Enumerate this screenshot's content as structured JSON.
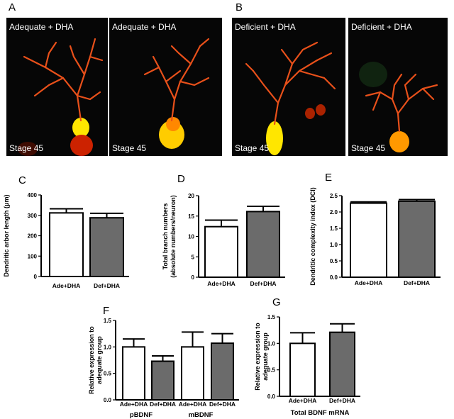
{
  "panels": {
    "A": "A",
    "B": "B",
    "C": "C",
    "D": "D",
    "E": "E",
    "F": "F",
    "G": "G"
  },
  "images": [
    {
      "top": "Adequate + DHA",
      "bottom": "Stage 45"
    },
    {
      "top": "Adequate + DHA",
      "bottom": "Stage 45"
    },
    {
      "top": "Deficient + DHA",
      "bottom": "Stage 45"
    },
    {
      "top": "Deficient + DHA",
      "bottom": "Stage 45"
    }
  ],
  "chart_data": [
    {
      "id": "C",
      "type": "bar",
      "categories": [
        "Ade+DHA",
        "Def+DHA"
      ],
      "values": [
        312,
        288
      ],
      "errors": [
        20,
        22
      ],
      "colors": [
        "#ffffff",
        "#6b6b6b"
      ],
      "ylabel": "Dendritic arbor length (μm)",
      "ylim": [
        0,
        400
      ],
      "yticks": [
        "0",
        "100",
        "200",
        "300",
        "400"
      ]
    },
    {
      "id": "D",
      "type": "bar",
      "categories": [
        "Ade+DHA",
        "Def+DHA"
      ],
      "values": [
        12.4,
        16.1
      ],
      "errors": [
        1.6,
        1.3
      ],
      "colors": [
        "#ffffff",
        "#6b6b6b"
      ],
      "ylabel": "Total branch numbers (absolute numbers/neuron)",
      "ylim": [
        0,
        20
      ],
      "yticks": [
        "0",
        "5",
        "10",
        "15",
        "20"
      ]
    },
    {
      "id": "E",
      "type": "bar",
      "categories": [
        "Ade+DHA",
        "Def+DHA"
      ],
      "values": [
        2.27,
        2.33
      ],
      "errors": [
        0.04,
        0.05
      ],
      "colors": [
        "#ffffff",
        "#6b6b6b"
      ],
      "ylabel": "Dendritic complexity index (DCI)",
      "ylim": [
        0,
        2.5
      ],
      "yticks": [
        "0.0",
        "0.5",
        "1.0",
        "1.5",
        "2.0",
        "2.5"
      ]
    },
    {
      "id": "F",
      "type": "bar",
      "categories": [
        "Ade+DHA",
        "Def+DHA",
        "Ade+DHA",
        "Def+DHA"
      ],
      "groups": [
        "pBDNF",
        "mBDNF"
      ],
      "values": [
        1.0,
        0.73,
        1.0,
        1.07
      ],
      "errors": [
        0.15,
        0.1,
        0.28,
        0.18
      ],
      "colors": [
        "#ffffff",
        "#6b6b6b",
        "#ffffff",
        "#6b6b6b"
      ],
      "ylabel": "Relative expression to adequate group",
      "ylim": [
        0,
        1.5
      ],
      "yticks": [
        "0.0",
        "0.5",
        "1.0",
        "1.5"
      ]
    },
    {
      "id": "G",
      "type": "bar",
      "categories": [
        "Ade+DHA",
        "Def+DHA"
      ],
      "values": [
        1.0,
        1.21
      ],
      "errors": [
        0.2,
        0.16
      ],
      "colors": [
        "#ffffff",
        "#6b6b6b"
      ],
      "ylabel": "Relative expression to adequate group",
      "xlabel": "Total BDNF mRNA",
      "ylim": [
        0,
        1.5
      ],
      "yticks": [
        "0.0",
        "0.5",
        "1.0",
        "1.5"
      ]
    }
  ]
}
